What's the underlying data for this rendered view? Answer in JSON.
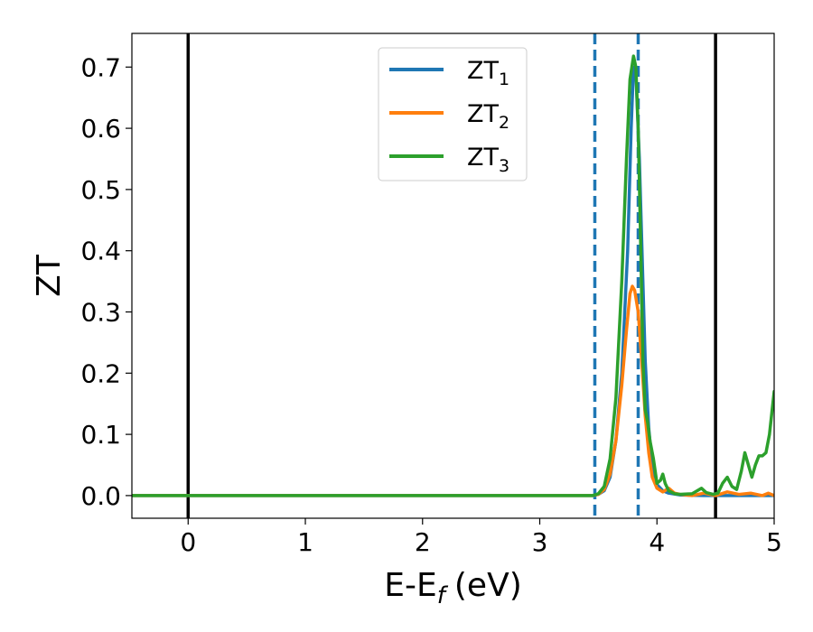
{
  "chart_data": {
    "type": "line",
    "xlabel": "E-E",
    "xlabel_sub": "f",
    "xlabel_unit": "(eV)",
    "ylabel": "ZT",
    "xlim": [
      -0.48,
      5.0
    ],
    "ylim": [
      -0.037,
      0.755
    ],
    "xticks": [
      0,
      1,
      2,
      3,
      4,
      5
    ],
    "xtick_labels": [
      "0",
      "1",
      "2",
      "3",
      "4",
      "5"
    ],
    "yticks": [
      0.0,
      0.1,
      0.2,
      0.3,
      0.4,
      0.5,
      0.6,
      0.7
    ],
    "ytick_labels": [
      "0.0",
      "0.1",
      "0.2",
      "0.3",
      "0.4",
      "0.5",
      "0.6",
      "0.7"
    ],
    "grid": false,
    "legend_position": "top-center",
    "vertical_lines": [
      {
        "x": 0.0,
        "style": "solid",
        "color": "#000000"
      },
      {
        "x": 4.5,
        "style": "solid",
        "color": "#000000"
      },
      {
        "x": 3.47,
        "style": "dashed",
        "color": "#1f77b4"
      },
      {
        "x": 3.84,
        "style": "dashed",
        "color": "#1f77b4"
      }
    ],
    "series": [
      {
        "name": "ZT",
        "name_sub": "1",
        "color": "#1f77b4",
        "points": [
          [
            -0.48,
            0
          ],
          [
            3.45,
            0
          ],
          [
            3.5,
            0.002
          ],
          [
            3.55,
            0.008
          ],
          [
            3.6,
            0.03
          ],
          [
            3.65,
            0.09
          ],
          [
            3.7,
            0.2
          ],
          [
            3.75,
            0.4
          ],
          [
            3.78,
            0.6
          ],
          [
            3.8,
            0.7
          ],
          [
            3.82,
            0.69
          ],
          [
            3.85,
            0.55
          ],
          [
            3.88,
            0.35
          ],
          [
            3.9,
            0.22
          ],
          [
            3.93,
            0.11
          ],
          [
            3.96,
            0.05
          ],
          [
            4.0,
            0.018
          ],
          [
            4.05,
            0.008
          ],
          [
            4.1,
            0.004
          ],
          [
            4.2,
            0.001
          ],
          [
            4.4,
            0.0
          ],
          [
            5.0,
            0.0
          ]
        ]
      },
      {
        "name": "ZT",
        "name_sub": "2",
        "color": "#ff7f0e",
        "points": [
          [
            -0.48,
            0
          ],
          [
            3.45,
            0
          ],
          [
            3.5,
            0.002
          ],
          [
            3.55,
            0.01
          ],
          [
            3.6,
            0.035
          ],
          [
            3.65,
            0.09
          ],
          [
            3.7,
            0.18
          ],
          [
            3.74,
            0.27
          ],
          [
            3.77,
            0.33
          ],
          [
            3.79,
            0.342
          ],
          [
            3.81,
            0.335
          ],
          [
            3.84,
            0.3
          ],
          [
            3.87,
            0.22
          ],
          [
            3.9,
            0.13
          ],
          [
            3.93,
            0.07
          ],
          [
            3.96,
            0.03
          ],
          [
            4.0,
            0.012
          ],
          [
            4.05,
            0.006
          ],
          [
            4.1,
            0.012
          ],
          [
            4.15,
            0.004
          ],
          [
            4.2,
            0.002
          ],
          [
            4.3,
            0.0
          ],
          [
            4.4,
            0.004
          ],
          [
            4.5,
            0.0
          ],
          [
            4.6,
            0.006
          ],
          [
            4.7,
            0.002
          ],
          [
            4.8,
            0.004
          ],
          [
            4.9,
            0.0
          ],
          [
            4.95,
            0.004
          ],
          [
            5.0,
            0.0
          ]
        ]
      },
      {
        "name": "ZT",
        "name_sub": "3",
        "color": "#2ca02c",
        "points": [
          [
            -0.48,
            0
          ],
          [
            3.45,
            0
          ],
          [
            3.5,
            0.003
          ],
          [
            3.55,
            0.015
          ],
          [
            3.6,
            0.06
          ],
          [
            3.65,
            0.16
          ],
          [
            3.7,
            0.35
          ],
          [
            3.74,
            0.55
          ],
          [
            3.77,
            0.68
          ],
          [
            3.8,
            0.718
          ],
          [
            3.82,
            0.7
          ],
          [
            3.84,
            0.6
          ],
          [
            3.86,
            0.42
          ],
          [
            3.88,
            0.22
          ],
          [
            3.9,
            0.14
          ],
          [
            3.92,
            0.12
          ],
          [
            3.94,
            0.09
          ],
          [
            3.97,
            0.06
          ],
          [
            4.0,
            0.02
          ],
          [
            4.03,
            0.025
          ],
          [
            4.05,
            0.035
          ],
          [
            4.07,
            0.02
          ],
          [
            4.1,
            0.008
          ],
          [
            4.15,
            0.003
          ],
          [
            4.2,
            0.002
          ],
          [
            4.3,
            0.003
          ],
          [
            4.38,
            0.012
          ],
          [
            4.42,
            0.005
          ],
          [
            4.48,
            0.002
          ],
          [
            4.52,
            0.004
          ],
          [
            4.56,
            0.02
          ],
          [
            4.6,
            0.03
          ],
          [
            4.64,
            0.015
          ],
          [
            4.68,
            0.01
          ],
          [
            4.72,
            0.04
          ],
          [
            4.75,
            0.07
          ],
          [
            4.78,
            0.05
          ],
          [
            4.81,
            0.03
          ],
          [
            4.84,
            0.05
          ],
          [
            4.87,
            0.065
          ],
          [
            4.9,
            0.065
          ],
          [
            4.93,
            0.07
          ],
          [
            4.96,
            0.1
          ],
          [
            5.0,
            0.17
          ]
        ]
      }
    ]
  }
}
